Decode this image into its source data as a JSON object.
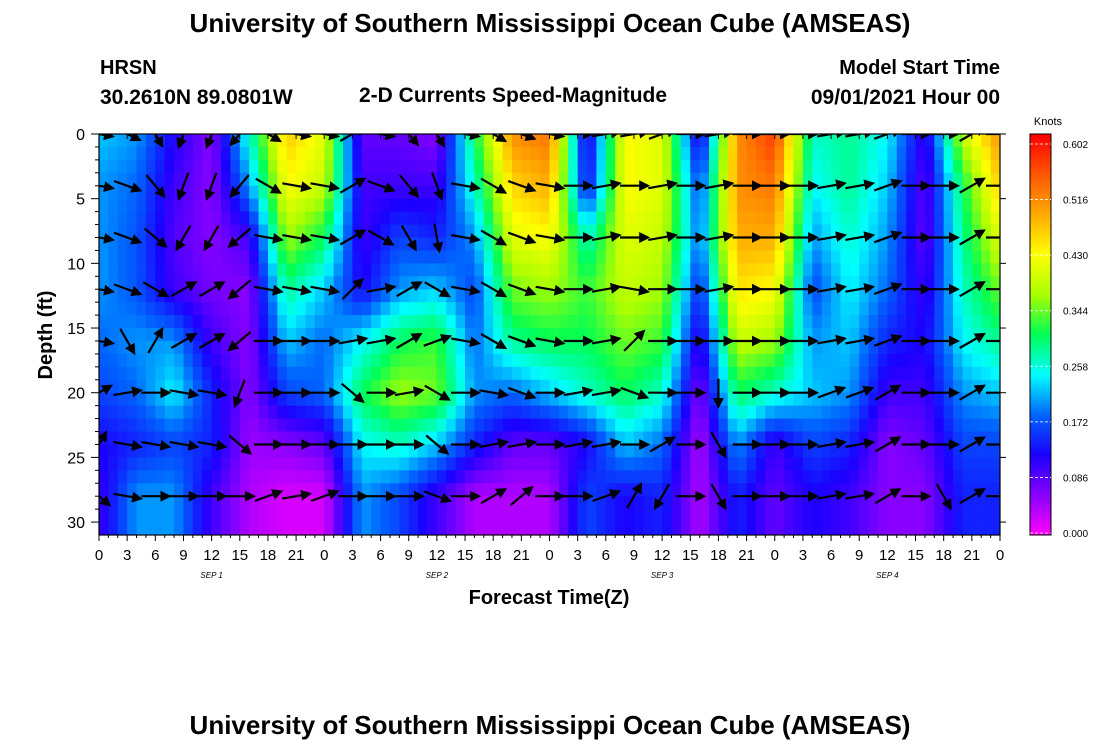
{
  "header": {
    "title_top": "University of Southern Mississippi Ocean Cube (AMSEAS)",
    "title_bottom": "University of Southern Mississippi Ocean Cube (AMSEAS)",
    "station": "HRSN",
    "coords": "30.2610N  89.0801W",
    "chart_title": "2-D Currents Speed-Magnitude",
    "model_start_label": "Model Start Time",
    "model_start_value": "09/01/2021 Hour 00"
  },
  "chart_data": {
    "type": "heatmap",
    "title": "2-D Currents Speed-Magnitude",
    "xlabel": "Forecast Time(Z)",
    "ylabel": "Depth (ft)",
    "xlim_hours": [
      0,
      96
    ],
    "ylim_ft": [
      0,
      31
    ],
    "y_inverted": true,
    "x_tick_labels": [
      "0",
      "3",
      "6",
      "9",
      "12",
      "15",
      "18",
      "21",
      "0",
      "3",
      "6",
      "9",
      "12",
      "15",
      "18",
      "21",
      "0",
      "3",
      "6",
      "9",
      "12",
      "15",
      "18",
      "21",
      "0",
      "3",
      "6",
      "9",
      "12",
      "15",
      "18",
      "21",
      "0"
    ],
    "day_labels": [
      {
        "text": "SEP 1",
        "hour": 12
      },
      {
        "text": "SEP 2",
        "hour": 36
      },
      {
        "text": "SEP 3",
        "hour": 60
      },
      {
        "text": "SEP 4",
        "hour": 84
      }
    ],
    "y_ticks": [
      0,
      5,
      10,
      15,
      20,
      25,
      30
    ],
    "colorbar": {
      "unit": "Knots",
      "ticks": [
        "0.602",
        "0.516",
        "0.430",
        "0.344",
        "0.258",
        "0.172",
        "0.086",
        "0.000"
      ],
      "min": 0.0,
      "max": 0.602,
      "colors": [
        "#ff00ff",
        "#8800ff",
        "#1a00ff",
        "#0066ff",
        "#00ffff",
        "#00ff55",
        "#aaff00",
        "#ffff00",
        "#ffaa00",
        "#ff5500",
        "#ff0000"
      ]
    },
    "profile_depths_ft": [
      0,
      4,
      8,
      12,
      16,
      20,
      24,
      28
    ],
    "speed_by_hour": [
      {
        "hour": 0,
        "speeds": [
          0.22,
          0.2,
          0.2,
          0.2,
          0.18,
          0.16,
          0.12,
          0.1
        ]
      },
      {
        "hour": 4,
        "speeds": [
          0.2,
          0.18,
          0.17,
          0.17,
          0.2,
          0.18,
          0.14,
          0.2
        ]
      },
      {
        "hour": 8,
        "speeds": [
          0.12,
          0.1,
          0.09,
          0.1,
          0.2,
          0.24,
          0.16,
          0.2
        ]
      },
      {
        "hour": 12,
        "speeds": [
          0.06,
          0.06,
          0.06,
          0.07,
          0.1,
          0.14,
          0.14,
          0.1
        ]
      },
      {
        "hour": 16,
        "speeds": [
          0.26,
          0.2,
          0.1,
          0.06,
          0.06,
          0.06,
          0.05,
          0.04
        ]
      },
      {
        "hour": 20,
        "speeds": [
          0.46,
          0.42,
          0.36,
          0.28,
          0.22,
          0.16,
          0.06,
          0.02
        ]
      },
      {
        "hour": 24,
        "speeds": [
          0.4,
          0.38,
          0.3,
          0.22,
          0.18,
          0.18,
          0.08,
          0.02
        ]
      },
      {
        "hour": 28,
        "speeds": [
          0.08,
          0.1,
          0.1,
          0.12,
          0.24,
          0.3,
          0.24,
          0.2
        ]
      },
      {
        "hour": 32,
        "speeds": [
          0.08,
          0.1,
          0.16,
          0.2,
          0.3,
          0.36,
          0.26,
          0.16
        ]
      },
      {
        "hour": 36,
        "speeds": [
          0.06,
          0.1,
          0.14,
          0.22,
          0.32,
          0.34,
          0.22,
          0.1
        ]
      },
      {
        "hour": 40,
        "speeds": [
          0.3,
          0.26,
          0.2,
          0.16,
          0.18,
          0.2,
          0.14,
          0.04
        ]
      },
      {
        "hour": 44,
        "speeds": [
          0.5,
          0.45,
          0.4,
          0.34,
          0.28,
          0.18,
          0.08,
          0.04
        ]
      },
      {
        "hour": 48,
        "speeds": [
          0.52,
          0.48,
          0.42,
          0.36,
          0.3,
          0.22,
          0.08,
          0.04
        ]
      },
      {
        "hour": 52,
        "speeds": [
          0.1,
          0.12,
          0.26,
          0.32,
          0.3,
          0.26,
          0.12,
          0.16
        ]
      },
      {
        "hour": 56,
        "speeds": [
          0.42,
          0.42,
          0.4,
          0.38,
          0.34,
          0.3,
          0.22,
          0.12
        ]
      },
      {
        "hour": 60,
        "speeds": [
          0.4,
          0.4,
          0.38,
          0.36,
          0.32,
          0.26,
          0.18,
          0.14
        ]
      },
      {
        "hour": 64,
        "speeds": [
          0.1,
          0.16,
          0.18,
          0.14,
          0.1,
          0.06,
          0.04,
          0.04
        ]
      },
      {
        "hour": 68,
        "speeds": [
          0.5,
          0.5,
          0.48,
          0.44,
          0.38,
          0.3,
          0.2,
          0.14
        ]
      },
      {
        "hour": 72,
        "speeds": [
          0.56,
          0.52,
          0.48,
          0.42,
          0.36,
          0.26,
          0.1,
          0.08
        ]
      },
      {
        "hour": 76,
        "speeds": [
          0.26,
          0.24,
          0.2,
          0.16,
          0.2,
          0.22,
          0.16,
          0.12
        ]
      },
      {
        "hour": 80,
        "speeds": [
          0.28,
          0.28,
          0.26,
          0.24,
          0.22,
          0.2,
          0.14,
          0.1
        ]
      },
      {
        "hour": 84,
        "speeds": [
          0.24,
          0.22,
          0.2,
          0.18,
          0.14,
          0.1,
          0.06,
          0.06
        ]
      },
      {
        "hour": 88,
        "speeds": [
          0.1,
          0.08,
          0.08,
          0.1,
          0.12,
          0.1,
          0.08,
          0.06
        ]
      },
      {
        "hour": 92,
        "speeds": [
          0.38,
          0.3,
          0.28,
          0.26,
          0.24,
          0.2,
          0.16,
          0.14
        ]
      },
      {
        "hour": 96,
        "speeds": [
          0.5,
          0.46,
          0.4,
          0.34,
          0.28,
          0.22,
          0.16,
          0.14
        ]
      }
    ],
    "vectors": {
      "hours": [
        0,
        3,
        6,
        9,
        12,
        15,
        18,
        21,
        24,
        27,
        30,
        33,
        36,
        39,
        42,
        45,
        48,
        51,
        54,
        57,
        60,
        63,
        66,
        69,
        72,
        75,
        78,
        81,
        84,
        87,
        90,
        93,
        96
      ],
      "depths_ft": [
        0,
        4,
        8,
        12,
        16,
        20,
        24,
        28
      ],
      "directions_deg": [
        [
          100,
          115,
          150,
          200,
          200,
          220,
          120,
          100,
          100,
          60,
          100,
          140,
          150,
          100,
          120,
          110,
          100,
          90,
          80,
          80,
          70,
          90,
          80,
          90,
          90,
          90,
          80,
          80,
          70,
          90,
          90,
          60,
          90
        ],
        [
          100,
          110,
          140,
          200,
          200,
          220,
          120,
          100,
          100,
          60,
          110,
          140,
          160,
          100,
          120,
          110,
          100,
          90,
          80,
          90,
          80,
          90,
          80,
          90,
          90,
          90,
          80,
          80,
          70,
          90,
          90,
          60,
          90
        ],
        [
          100,
          110,
          130,
          210,
          210,
          230,
          100,
          100,
          100,
          60,
          120,
          150,
          170,
          100,
          120,
          110,
          100,
          90,
          80,
          90,
          80,
          90,
          80,
          90,
          90,
          90,
          80,
          80,
          70,
          90,
          90,
          60,
          90
        ],
        [
          100,
          110,
          120,
          60,
          60,
          230,
          100,
          100,
          100,
          45,
          80,
          60,
          120,
          100,
          120,
          110,
          100,
          90,
          80,
          100,
          90,
          90,
          80,
          90,
          90,
          90,
          80,
          80,
          70,
          90,
          90,
          60,
          90
        ],
        [
          100,
          150,
          30,
          60,
          60,
          230,
          90,
          90,
          90,
          80,
          80,
          60,
          70,
          100,
          120,
          110,
          100,
          90,
          80,
          45,
          90,
          90,
          90,
          90,
          90,
          90,
          80,
          80,
          70,
          90,
          90,
          60,
          90
        ],
        [
          60,
          80,
          90,
          100,
          100,
          200,
          90,
          90,
          90,
          130,
          90,
          80,
          120,
          90,
          100,
          110,
          90,
          80,
          80,
          110,
          90,
          90,
          180,
          90,
          90,
          90,
          70,
          70,
          60,
          90,
          90,
          60,
          90
        ],
        [
          30,
          100,
          100,
          100,
          100,
          130,
          90,
          90,
          90,
          90,
          90,
          90,
          130,
          90,
          80,
          80,
          90,
          80,
          80,
          90,
          60,
          90,
          150,
          90,
          90,
          90,
          80,
          80,
          60,
          90,
          90,
          60,
          90
        ],
        [
          130,
          100,
          90,
          90,
          90,
          90,
          70,
          80,
          70,
          90,
          90,
          90,
          110,
          90,
          60,
          50,
          90,
          90,
          70,
          30,
          210,
          90,
          150,
          90,
          90,
          90,
          80,
          80,
          60,
          90,
          150,
          60,
          90
        ]
      ]
    }
  }
}
